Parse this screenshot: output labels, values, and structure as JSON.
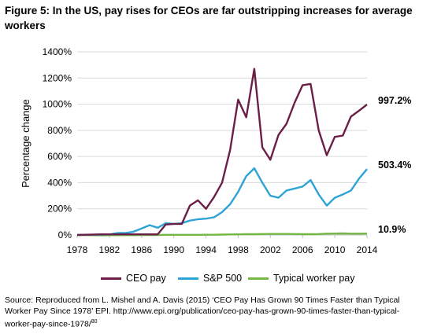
{
  "figure": {
    "title": "Figure 5: In the US, pay rises for CEOs are far outstripping increases for average workers",
    "source": "Source: Reproduced from L. Mishel and A. Davis (2015) ‘CEO Pay Has Grown 90 Times Faster than Typical Worker Pay Since 1978’ EPI. http://www.epi.org/publication/ceo-pay-has-grown-90-times-faster-than-typical-worker-pay-since-1978/",
    "source_ref": "80"
  },
  "chart_data": {
    "type": "line",
    "title": "Figure 5: In the US, pay rises for CEOs are far outstripping increases for average workers",
    "xlabel": "",
    "ylabel": "Percentage change",
    "xlim": [
      1978,
      2014
    ],
    "ylim": [
      0,
      1400
    ],
    "x_ticks": [
      "1978",
      "1982",
      "1986",
      "1990",
      "1994",
      "1998",
      "2002",
      "2006",
      "2010",
      "2014"
    ],
    "y_ticks": [
      "0%",
      "200%",
      "400%",
      "600%",
      "800%",
      "1000%",
      "1200%",
      "1400%"
    ],
    "grid": "horizontal",
    "legend_position": "bottom",
    "x": [
      1978,
      1979,
      1980,
      1981,
      1982,
      1983,
      1984,
      1985,
      1986,
      1987,
      1988,
      1989,
      1990,
      1991,
      1992,
      1993,
      1994,
      1995,
      1996,
      1997,
      1998,
      1999,
      2000,
      2001,
      2002,
      2003,
      2004,
      2005,
      2006,
      2007,
      2008,
      2009,
      2010,
      2011,
      2012,
      2013,
      2014
    ],
    "series": [
      {
        "name": "CEO pay",
        "color": "#6b1f47",
        "end_label": "997.2%",
        "values": [
          0,
          2,
          3,
          5,
          5,
          5,
          5,
          5,
          5,
          5,
          5,
          80,
          85,
          85,
          225,
          265,
          200,
          290,
          400,
          650,
          1035,
          900,
          1270,
          670,
          575,
          765,
          850,
          1010,
          1145,
          1155,
          800,
          610,
          750,
          760,
          905,
          950,
          997.2
        ]
      },
      {
        "name": "S&P 500",
        "color": "#2ea3d6",
        "end_label": "503.4%",
        "values": [
          0,
          1,
          2,
          3,
          4,
          15,
          15,
          25,
          50,
          75,
          55,
          90,
          85,
          90,
          110,
          120,
          125,
          135,
          175,
          235,
          330,
          450,
          510,
          400,
          300,
          285,
          340,
          355,
          370,
          420,
          310,
          225,
          285,
          310,
          340,
          430,
          503.4
        ]
      },
      {
        "name": "Typical worker pay",
        "color": "#74b843",
        "end_label": "10.9%",
        "values": [
          0,
          -1,
          -2,
          -3,
          -2,
          -2,
          -1,
          -1,
          0,
          0,
          0,
          1,
          1,
          1,
          1,
          1,
          2,
          2,
          3,
          4,
          5,
          6,
          6,
          7,
          8,
          8,
          8,
          7,
          6,
          6,
          7,
          10,
          11,
          12,
          10,
          10,
          10.9
        ]
      }
    ]
  }
}
